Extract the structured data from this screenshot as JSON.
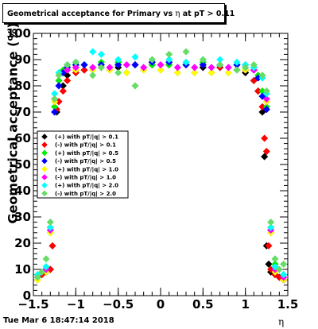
{
  "title": {
    "prefix": "Geometrical acceptance for Primary vs",
    "eta": "η",
    "suffix": "at pT > 0.11"
  },
  "footer": "Tue Mar  6 18:47:14 2018",
  "chart_data": {
    "type": "scatter",
    "xlabel": "η",
    "ylabel": "Geometrical acceptance (%)",
    "xlim": [
      -1.5,
      1.5
    ],
    "ylim": [
      0,
      100
    ],
    "x_ticks": [
      "−1.5",
      "−1",
      "−0.5",
      "0",
      "0.5",
      "1",
      "1.5"
    ],
    "y_ticks": [
      "0",
      "10",
      "20",
      "30",
      "40",
      "50",
      "60",
      "70",
      "80",
      "90",
      "100"
    ],
    "grid": false,
    "legend_position": "middle-left",
    "series": [
      {
        "name": "(+) with pT/|q| > 0.1",
        "color": "#000000",
        "x": [
          -1.45,
          -1.4,
          -1.35,
          -1.3,
          -1.275,
          -1.25,
          -1.225,
          -1.2,
          -1.15,
          -1.1,
          -1.0,
          -0.9,
          -0.7,
          -0.5,
          -0.3,
          -0.1,
          0.1,
          0.3,
          0.5,
          0.7,
          0.9,
          1.0,
          1.1,
          1.15,
          1.2,
          1.225,
          1.25,
          1.275,
          1.3,
          1.35,
          1.4,
          1.45
        ],
        "y": [
          7,
          8,
          9,
          10,
          19,
          55,
          70,
          74,
          80,
          84,
          85,
          86,
          87,
          87,
          88,
          88,
          88,
          88,
          87,
          87,
          86,
          85,
          82,
          78,
          70,
          53,
          19,
          12,
          9,
          8,
          7,
          6
        ]
      },
      {
        "name": "(-) with pT/|q| > 0.1",
        "color": "#ff0000",
        "x": [
          -1.45,
          -1.4,
          -1.35,
          -1.3,
          -1.275,
          -1.25,
          -1.225,
          -1.2,
          -1.15,
          -1.1,
          -1.0,
          -0.9,
          -0.7,
          -0.5,
          -0.3,
          -0.1,
          0.1,
          0.3,
          0.5,
          0.7,
          0.9,
          1.0,
          1.1,
          1.15,
          1.2,
          1.225,
          1.25,
          1.275,
          1.3,
          1.35,
          1.4,
          1.45
        ],
        "y": [
          7,
          8,
          9,
          10,
          19,
          54,
          71,
          74,
          78,
          82,
          85,
          86,
          87,
          88,
          88,
          89,
          88,
          88,
          88,
          87,
          86,
          86,
          82,
          78,
          72,
          60,
          55,
          19,
          10,
          8,
          7,
          6
        ]
      },
      {
        "name": "(+) with pT/|q| > 0.5",
        "color": "#00ee00",
        "x": [
          -1.45,
          -1.35,
          -1.3,
          -1.25,
          -1.2,
          -1.15,
          -1.1,
          -1.0,
          -0.9,
          -0.7,
          -0.5,
          -0.3,
          -0.1,
          0.1,
          0.3,
          0.5,
          0.7,
          0.9,
          1.0,
          1.1,
          1.15,
          1.2,
          1.25,
          1.3,
          1.35,
          1.45
        ],
        "y": [
          8,
          11,
          26,
          72,
          82,
          86,
          88,
          88,
          88,
          89,
          89,
          88,
          88,
          88,
          88,
          89,
          88,
          88,
          88,
          87,
          84,
          78,
          72,
          26,
          12,
          8
        ]
      },
      {
        "name": "(-) with pT/|q| > 0.5",
        "color": "#0000ff",
        "x": [
          -1.45,
          -1.35,
          -1.3,
          -1.25,
          -1.2,
          -1.15,
          -1.1,
          -1.0,
          -0.9,
          -0.7,
          -0.5,
          -0.3,
          -0.1,
          0.1,
          0.3,
          0.5,
          0.7,
          0.9,
          1.0,
          1.1,
          1.15,
          1.2,
          1.25,
          1.3,
          1.35,
          1.45
        ],
        "y": [
          7,
          10,
          25,
          70,
          80,
          85,
          87,
          88,
          88,
          88,
          88,
          88,
          89,
          89,
          88,
          88,
          88,
          88,
          88,
          86,
          83,
          76,
          71,
          25,
          11,
          8
        ]
      },
      {
        "name": "(+) with pT/|q| > 1.0",
        "color": "#ffff00",
        "x": [
          -1.45,
          -1.35,
          -1.3,
          -1.25,
          -1.2,
          -1.1,
          -1.0,
          -0.8,
          -0.6,
          -0.4,
          -0.2,
          0.0,
          0.2,
          0.4,
          0.6,
          0.8,
          1.0,
          1.1,
          1.2,
          1.25,
          1.3,
          1.35,
          1.45
        ],
        "y": [
          6,
          9,
          24,
          74,
          84,
          86,
          86,
          86,
          86,
          85,
          86,
          86,
          85,
          85,
          85,
          85,
          86,
          86,
          84,
          74,
          24,
          9,
          6
        ]
      },
      {
        "name": "(-) with pT/|q| > 1.0",
        "color": "#ff00ff",
        "x": [
          -1.45,
          -1.35,
          -1.3,
          -1.25,
          -1.2,
          -1.1,
          -1.0,
          -0.8,
          -0.6,
          -0.4,
          -0.2,
          0.0,
          0.2,
          0.4,
          0.6,
          0.8,
          1.0,
          1.1,
          1.2,
          1.25,
          1.3,
          1.35,
          1.45
        ],
        "y": [
          7,
          10,
          25,
          75,
          84,
          86,
          87,
          87,
          87,
          88,
          87,
          88,
          87,
          87,
          87,
          87,
          87,
          86,
          84,
          75,
          25,
          10,
          7
        ]
      },
      {
        "name": "(+) with pT/|q| > 2.0",
        "color": "#00ffff",
        "x": [
          -1.45,
          -1.35,
          -1.3,
          -1.25,
          -1.2,
          -1.1,
          -1.0,
          -0.8,
          -0.7,
          -0.5,
          -0.3,
          -0.1,
          0.1,
          0.3,
          0.5,
          0.7,
          0.9,
          1.0,
          1.1,
          1.2,
          1.25,
          1.3,
          1.35,
          1.45
        ],
        "y": [
          8,
          11,
          26,
          77,
          85,
          88,
          89,
          93,
          92,
          90,
          91,
          90,
          90,
          89,
          90,
          90,
          89,
          88,
          87,
          83,
          77,
          26,
          11,
          8
        ]
      },
      {
        "name": "(-) with pT/|q| > 2.0",
        "color": "#66dd66",
        "x": [
          -1.45,
          -1.4,
          -1.35,
          -1.3,
          -1.25,
          -1.2,
          -1.1,
          -1.0,
          -0.8,
          -0.7,
          -0.5,
          -0.3,
          -0.1,
          0.1,
          0.3,
          0.5,
          0.7,
          0.9,
          1.0,
          1.1,
          1.2,
          1.25,
          1.3,
          1.35,
          1.4,
          1.45
        ],
        "y": [
          7,
          9,
          14,
          28,
          75,
          84,
          88,
          89,
          84,
          87,
          85,
          80,
          90,
          92,
          93,
          90,
          88,
          86,
          87,
          88,
          84,
          78,
          28,
          14,
          10,
          12
        ]
      }
    ]
  }
}
